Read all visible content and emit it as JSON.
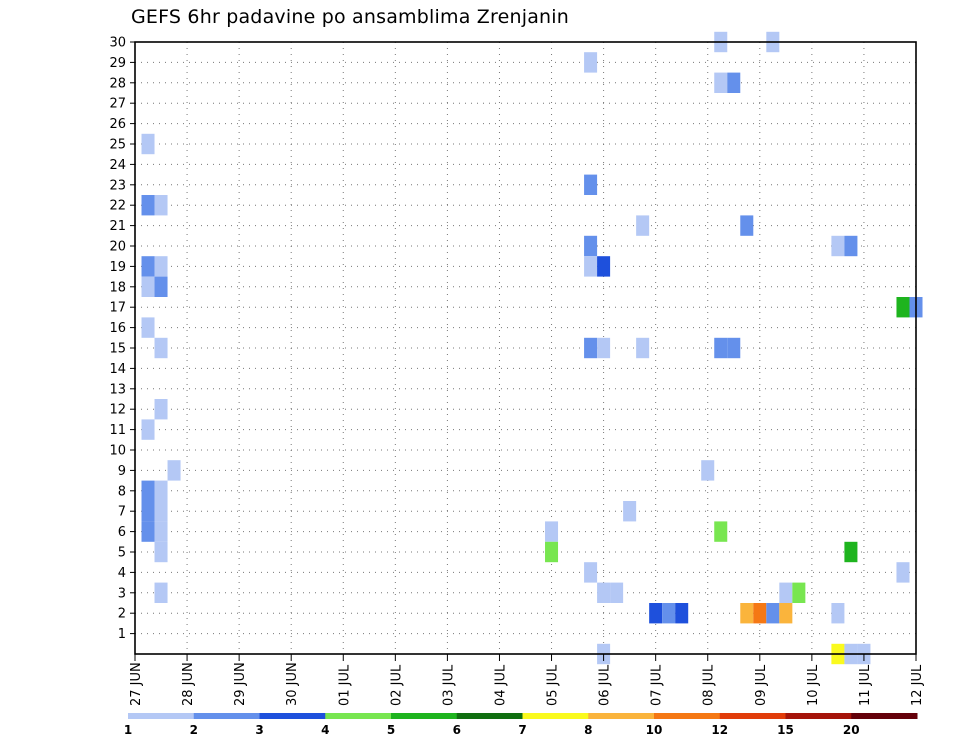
{
  "chart_data": {
    "type": "heatmap",
    "title": "GEFS 6hr padavine po ansamblima Zrenjanin",
    "xlabel": "",
    "ylabel": "",
    "x_ticks": [
      "27 JUN",
      "28 JUN",
      "29 JUN",
      "30 JUN",
      "01 JUL",
      "02 JUL",
      "03 JUL",
      "04 JUL",
      "05 JUL",
      "06 JUL",
      "07 JUL",
      "08 JUL",
      "09 JUL",
      "10 JUL",
      "11 JUL",
      "12 JUL"
    ],
    "y_ticks": [
      1,
      2,
      3,
      4,
      5,
      6,
      7,
      8,
      9,
      10,
      11,
      12,
      13,
      14,
      15,
      16,
      17,
      18,
      19,
      20,
      21,
      22,
      23,
      24,
      25,
      26,
      27,
      28,
      29,
      30
    ],
    "xlim_days": [
      0,
      15
    ],
    "ylim_members": [
      0,
      30
    ],
    "grid": true,
    "time_step_hours": 6,
    "legend": {
      "placement": "bottom",
      "labels": [
        "1",
        "2",
        "3",
        "4",
        "5",
        "6",
        "7",
        "8",
        "10",
        "12",
        "15",
        "20"
      ],
      "colors": [
        "#b4c8f5",
        "#6490eb",
        "#1e50dc",
        "#78e650",
        "#1eb41e",
        "#0f6e0f",
        "#fafa1e",
        "#fab43c",
        "#f57814",
        "#e13c0a",
        "#a5140a",
        "#64000a"
      ]
    },
    "cells": [
      {
        "member": 30,
        "time": "08 JUL 06",
        "level": 1
      },
      {
        "member": 30,
        "time": "09 JUL 06",
        "level": 1
      },
      {
        "member": 29,
        "time": "05 JUL 18",
        "level": 1
      },
      {
        "member": 28,
        "time": "08 JUL 06",
        "level": 1
      },
      {
        "member": 28,
        "time": "08 JUL 12",
        "level": 2
      },
      {
        "member": 25,
        "time": "27 JUN 06",
        "level": 1
      },
      {
        "member": 23,
        "time": "05 JUL 18",
        "level": 2
      },
      {
        "member": 22,
        "time": "27 JUN 06",
        "level": 2
      },
      {
        "member": 22,
        "time": "27 JUN 12",
        "level": 1
      },
      {
        "member": 21,
        "time": "06 JUL 18",
        "level": 1
      },
      {
        "member": 21,
        "time": "08 JUL 18",
        "level": 2
      },
      {
        "member": 20,
        "time": "05 JUL 18",
        "level": 2
      },
      {
        "member": 20,
        "time": "10 JUL 12",
        "level": 1
      },
      {
        "member": 20,
        "time": "10 JUL 18",
        "level": 2
      },
      {
        "member": 19,
        "time": "27 JUN 06",
        "level": 2
      },
      {
        "member": 19,
        "time": "27 JUN 12",
        "level": 1
      },
      {
        "member": 19,
        "time": "05 JUL 18",
        "level": 1
      },
      {
        "member": 19,
        "time": "06 JUL 00",
        "level": 3
      },
      {
        "member": 18,
        "time": "27 JUN 06",
        "level": 1
      },
      {
        "member": 18,
        "time": "27 JUN 12",
        "level": 2
      },
      {
        "member": 17,
        "time": "11 JUL 18",
        "level": 5
      },
      {
        "member": 17,
        "time": "12 JUL 00",
        "level": 2
      },
      {
        "member": 16,
        "time": "27 JUN 06",
        "level": 1
      },
      {
        "member": 15,
        "time": "27 JUN 12",
        "level": 1
      },
      {
        "member": 15,
        "time": "05 JUL 18",
        "level": 2
      },
      {
        "member": 15,
        "time": "06 JUL 00",
        "level": 1
      },
      {
        "member": 15,
        "time": "06 JUL 18",
        "level": 1
      },
      {
        "member": 15,
        "time": "08 JUL 06",
        "level": 2
      },
      {
        "member": 15,
        "time": "08 JUL 12",
        "level": 2
      },
      {
        "member": 12,
        "time": "27 JUN 12",
        "level": 1
      },
      {
        "member": 11,
        "time": "27 JUN 06",
        "level": 1
      },
      {
        "member": 9,
        "time": "27 JUN 18",
        "level": 1
      },
      {
        "member": 9,
        "time": "08 JUL 00",
        "level": 1
      },
      {
        "member": 8,
        "time": "27 JUN 06",
        "level": 2
      },
      {
        "member": 8,
        "time": "27 JUN 12",
        "level": 1
      },
      {
        "member": 7,
        "time": "27 JUN 06",
        "level": 2
      },
      {
        "member": 7,
        "time": "27 JUN 12",
        "level": 1
      },
      {
        "member": 7,
        "time": "06 JUL 12",
        "level": 1
      },
      {
        "member": 6,
        "time": "27 JUN 06",
        "level": 2
      },
      {
        "member": 6,
        "time": "27 JUN 12",
        "level": 1
      },
      {
        "member": 6,
        "time": "05 JUL 00",
        "level": 1
      },
      {
        "member": 6,
        "time": "08 JUL 06",
        "level": 4
      },
      {
        "member": 5,
        "time": "27 JUN 12",
        "level": 1
      },
      {
        "member": 5,
        "time": "05 JUL 00",
        "level": 4
      },
      {
        "member": 5,
        "time": "10 JUL 18",
        "level": 5
      },
      {
        "member": 4,
        "time": "05 JUL 18",
        "level": 1
      },
      {
        "member": 4,
        "time": "11 JUL 18",
        "level": 1
      },
      {
        "member": 3,
        "time": "27 JUN 12",
        "level": 1
      },
      {
        "member": 3,
        "time": "06 JUL 00",
        "level": 1
      },
      {
        "member": 3,
        "time": "06 JUL 06",
        "level": 1
      },
      {
        "member": 3,
        "time": "09 JUL 12",
        "level": 1
      },
      {
        "member": 3,
        "time": "09 JUL 18",
        "level": 4
      },
      {
        "member": 2,
        "time": "07 JUL 00",
        "level": 3
      },
      {
        "member": 2,
        "time": "07 JUL 06",
        "level": 2
      },
      {
        "member": 2,
        "time": "07 JUL 12",
        "level": 3
      },
      {
        "member": 2,
        "time": "08 JUL 18",
        "level": 8
      },
      {
        "member": 2,
        "time": "09 JUL 00",
        "level": 9
      },
      {
        "member": 2,
        "time": "09 JUL 06",
        "level": 2
      },
      {
        "member": 2,
        "time": "09 JUL 12",
        "level": 8
      },
      {
        "member": 2,
        "time": "10 JUL 12",
        "level": 1
      },
      {
        "member": 0,
        "time": "06 JUL 00",
        "level": 1
      },
      {
        "member": 0,
        "time": "10 JUL 12",
        "level": 7
      },
      {
        "member": 0,
        "time": "10 JUL 18",
        "level": 1
      },
      {
        "member": 0,
        "time": "11 JUL 00",
        "level": 1
      }
    ]
  }
}
